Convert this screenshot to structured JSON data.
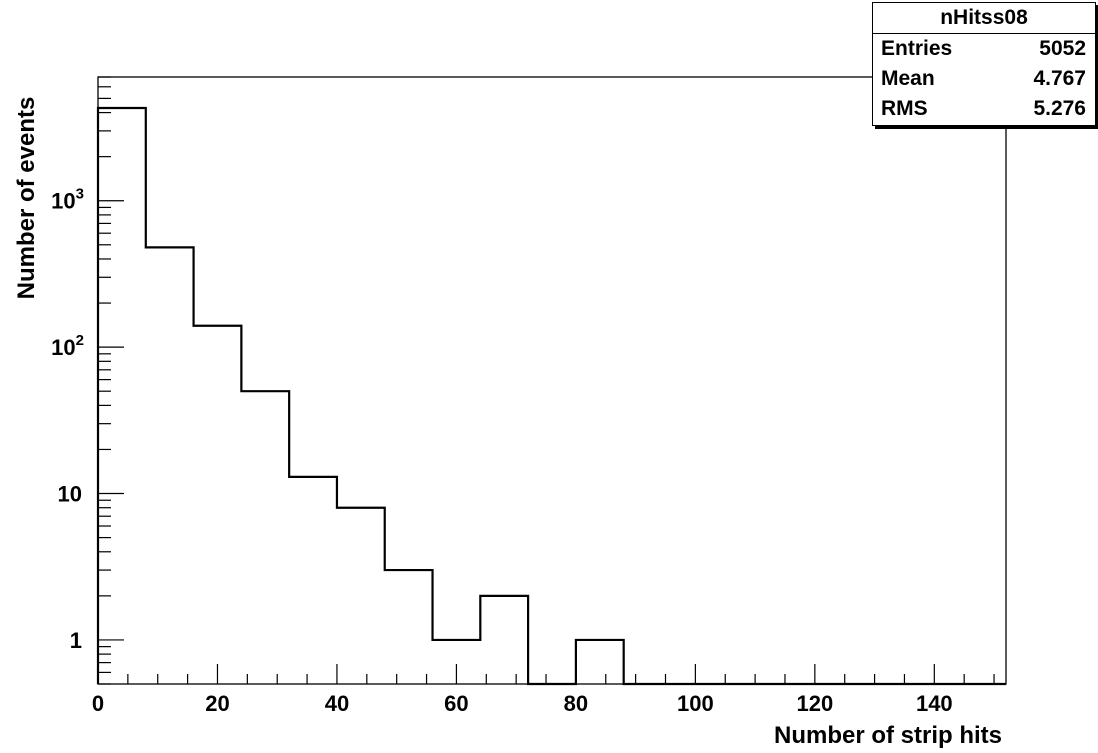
{
  "chart_data": {
    "type": "bar",
    "histogram": true,
    "xlabel": "Number of strip hits",
    "ylabel": "Number of events",
    "x_range": [
      0,
      152
    ],
    "y_range": [
      0.5,
      7000
    ],
    "y_scale": "log",
    "bin_width": 8,
    "bin_edges": [
      0,
      8,
      16,
      24,
      32,
      40,
      48,
      56,
      64,
      72,
      80,
      88,
      96,
      104,
      112,
      120,
      128,
      136,
      144,
      152
    ],
    "values": [
      4300,
      480,
      140,
      50,
      13,
      8,
      3,
      1,
      2,
      0,
      1,
      0,
      0,
      0,
      0,
      0,
      0,
      0,
      0
    ],
    "x_ticks": [
      "0",
      "20",
      "40",
      "60",
      "80",
      "100",
      "120",
      "140"
    ],
    "x_tick_values": [
      0,
      20,
      40,
      60,
      80,
      100,
      120,
      140
    ],
    "y_ticks": [
      {
        "value": 1,
        "base": "1",
        "exp": ""
      },
      {
        "value": 10,
        "base": "10",
        "exp": ""
      },
      {
        "value": 100,
        "base": "10",
        "exp": "2"
      },
      {
        "value": 1000,
        "base": "10",
        "exp": "3"
      }
    ],
    "grid": false,
    "legend": "none"
  },
  "stats": {
    "title": "nHitss08",
    "rows": [
      {
        "label": "Entries",
        "value": "5052"
      },
      {
        "label": "Mean",
        "value": "4.767"
      },
      {
        "label": "RMS",
        "value": "5.276"
      }
    ]
  },
  "colors": {
    "line": "#000000",
    "background": "#ffffff"
  }
}
